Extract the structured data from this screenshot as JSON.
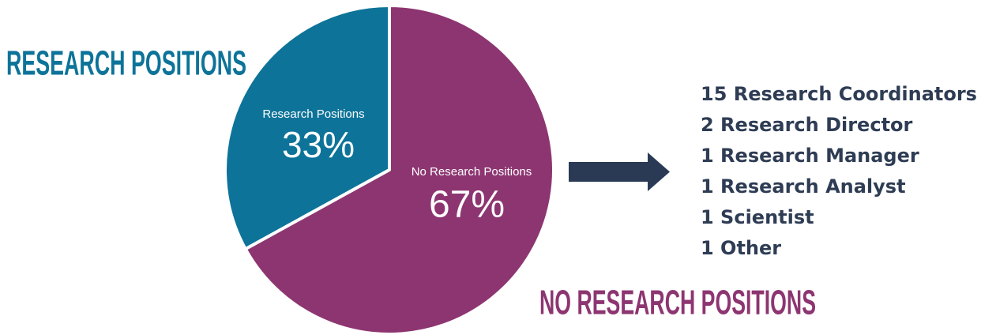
{
  "chart_data": {
    "type": "pie",
    "categories": [
      "Research Positions",
      "No Research Positions"
    ],
    "values": [
      33,
      67
    ],
    "value_labels": [
      "33%",
      "67%"
    ],
    "colors": [
      "#0d7399",
      "#8d3571"
    ],
    "annotations": [
      "RESEARCH POSITIONS",
      "NO RESEARCH POSITIONS"
    ],
    "breakdown": [
      "15 Research Coordinators",
      "2 Research Director",
      "1 Research Manager",
      "1 Research Analyst",
      "1 Scientist",
      "1 Other"
    ]
  }
}
